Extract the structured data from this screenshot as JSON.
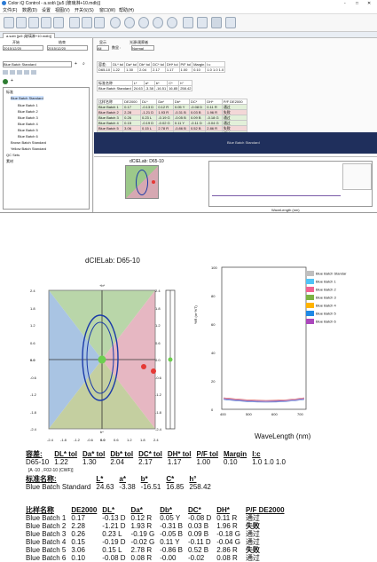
{
  "window": {
    "title": "Color iQ Control - a.sob\\ [ju5 (玻璃淋+10.mdb)]",
    "controls": [
      "-",
      "□",
      "✕"
    ]
  },
  "menubar": [
    "文件(F)",
    "数据(D)",
    "设置",
    "视图(V)",
    "开关仪(S)",
    "窗口(W)",
    "帮助(H)"
  ],
  "tab": "a.sob\\ [ju5 (玻璃淋+10.mdb)]",
  "filter": {
    "start_label": "开始",
    "end_label": "结束",
    "start_date": "2015/12/20",
    "end_date": "2015/12/20",
    "display_label": "显示",
    "display_value": "All",
    "group_label": "数显 :",
    "category_label": "光源/观察者",
    "category_value": "Normal"
  },
  "tree": {
    "dropdown": "Blue Batch Standard",
    "root": "标准",
    "items": [
      "Blue Batch Standard",
      "Blue Batch 1",
      "Blue Batch 2",
      "Blue Batch 3",
      "Blue Batch 4",
      "Blue Batch 5",
      "Blue Batch 6",
      "Brown Batch Standard",
      "Yellow Batch Standard"
    ],
    "extra": [
      "QC Sets",
      "素材"
    ]
  },
  "mini_tables": {
    "tol_head": [
      "容差:",
      "DL* tol",
      "Da* tol",
      "Db* tol",
      "DC* tol",
      "DH* tol",
      "P/F tol",
      "Margin",
      "l:c"
    ],
    "tol_row": [
      "D65-10",
      "1.22",
      "1.30",
      "2.04",
      "2.17",
      "1.17",
      "1.00",
      "0.10",
      "1.0 1.0 1.0"
    ],
    "std_head": [
      "标准名称",
      "L*",
      "a*",
      "b*",
      "C*",
      "h°"
    ],
    "std_row": [
      "Blue Batch Standard",
      "24.63",
      "-3.38",
      "-16.51",
      "16.85",
      "258.42"
    ],
    "batch_head": [
      "比样名称",
      "DE2000",
      "DL*",
      "Da*",
      "Db*",
      "DC*",
      "DH*",
      "P/F DE2000"
    ],
    "banner": "Blue Batch Standard"
  },
  "mini_chart": {
    "title": "dCIELab: D65-10",
    "wave_label": "WaveLength (nm)"
  },
  "report": {
    "plot_title": "dCIELab: D65-10",
    "axis_top": "+b*",
    "axis_bottom": "b*",
    "side_labels_left": [
      "2.4",
      "1.8",
      "1.2",
      "0.6",
      "0.0",
      "-0.6",
      "-1.2",
      "-1.8",
      "-2.4"
    ],
    "side_labels_right": [
      "2.4",
      "1.8",
      "1.2",
      "0.6",
      "0.0",
      "-0.6",
      "-1.2",
      "-1.8",
      "-2.4"
    ],
    "x_ticks": [
      "-2.4",
      "-1.8",
      "-1.2",
      "-0.6",
      "0.0",
      "0.6",
      "1.2",
      "1.8",
      "2.4"
    ],
    "spectral": {
      "ylabel": "%R (or %T)",
      "xlabel": "WaveLength (nm)",
      "y_ticks": [
        "100",
        "80",
        "60",
        "40",
        "20",
        "0"
      ],
      "x_ticks": [
        "400",
        "500",
        "600",
        "700"
      ]
    },
    "legend": [
      {
        "name": "Blue Batch Standar",
        "color": "#bfbfbf"
      },
      {
        "name": "Blue Batch 1",
        "color": "#4fc3f7"
      },
      {
        "name": "Blue Batch 2",
        "color": "#f06292"
      },
      {
        "name": "Blue Batch 3",
        "color": "#7cb342"
      },
      {
        "name": "Blue Batch 4",
        "color": "#ffb300"
      },
      {
        "name": "Blue Batch 5",
        "color": "#1e88e5"
      },
      {
        "name": "Blue Batch 6",
        "color": "#ab47bc"
      }
    ],
    "tolerance": {
      "headers": [
        "容差:",
        "DL* tol",
        "Da* tol",
        "Db* tol",
        "DC* tol",
        "DH* tol",
        "P/F tol",
        "Margin",
        "l:c"
      ],
      "name": "D65-10",
      "note": "[A -10 , F02-10 (CWF)]",
      "values": [
        "1.22",
        "1.30",
        "2.04",
        "2.17",
        "1.17",
        "1.00",
        "0.10",
        "1.0 1.0 1.0"
      ]
    },
    "standard": {
      "headers": [
        "标准名称:",
        "L*",
        "a*",
        "b*",
        "C*",
        "h°"
      ],
      "name": "Blue Batch Standard",
      "values": [
        "24.63",
        "-3.38",
        "-16.51",
        "16.85",
        "258.42"
      ]
    },
    "batches": {
      "headers": [
        "比样名称",
        "DE2000",
        "DL*",
        "Da*",
        "Db*",
        "DC*",
        "DH*",
        "P/F DE2000"
      ],
      "rows": [
        [
          "Blue Batch 1",
          "0.17",
          "-0.13 D",
          "0.12 R",
          "0.05 Y",
          "-0.08 D",
          "0.11 R",
          "通过"
        ],
        [
          "Blue Batch 2",
          "2.28",
          "-1.21 D",
          "1.93 R",
          "-0.31 B",
          "0.03 B",
          "1.96 R",
          "失败"
        ],
        [
          "Blue Batch 3",
          "0.26",
          "0.23 L",
          "-0.19 G",
          "-0.05 B",
          "0.09 B",
          "-0.18 G",
          "通过"
        ],
        [
          "Blue Batch 4",
          "0.15",
          "-0.19 D",
          "-0.02 G",
          "0.11 Y",
          "-0.11 D",
          "-0.04 G",
          "通过"
        ],
        [
          "Blue Batch 5",
          "3.06",
          "0.15 L",
          "2.78 R",
          "-0.86 B",
          "0.52 B",
          "2.86 R",
          "失败"
        ],
        [
          "Blue Batch 6",
          "0.10",
          "-0.08 D",
          "0.08 R",
          "-0.00",
          "-0.02",
          "0.08 R",
          "通过"
        ]
      ]
    }
  }
}
